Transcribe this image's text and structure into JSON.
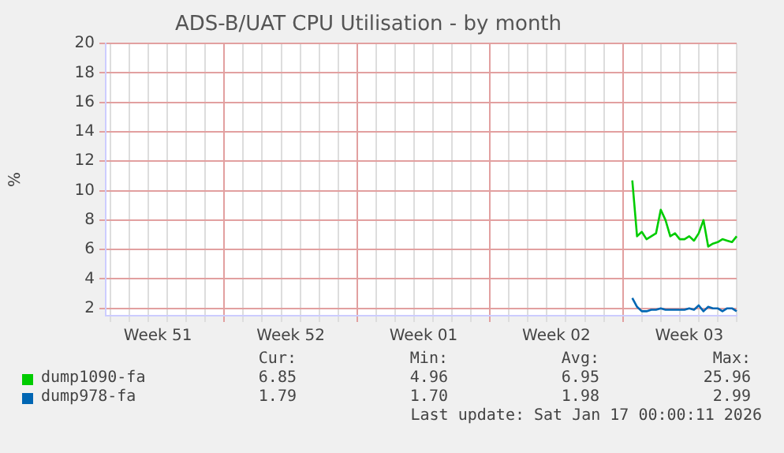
{
  "chart_data": {
    "type": "line",
    "title": "ADS-B/UAT CPU Utilisation - by month",
    "ylabel": "%",
    "categories": [
      null,
      null,
      null,
      null,
      null,
      null,
      null,
      null,
      null,
      null,
      null,
      "Week 51",
      null,
      null,
      null,
      null,
      null,
      null,
      null,
      null,
      null,
      null,
      null,
      null,
      null,
      null,
      null,
      null,
      null,
      null,
      null,
      null,
      null,
      null,
      null,
      null,
      null,
      null,
      null,
      "Week 52",
      null,
      null,
      null,
      null,
      null,
      null,
      null,
      null,
      null,
      null,
      null,
      null,
      null,
      null,
      null,
      null,
      null,
      null,
      null,
      null,
      null,
      null,
      null,
      null,
      null,
      null,
      null,
      "Week 01",
      null,
      null,
      null,
      null,
      null,
      null,
      null,
      null,
      null,
      null,
      null,
      null,
      null,
      null,
      null,
      null,
      null,
      null,
      null,
      null,
      null,
      null,
      null,
      null,
      null,
      null,
      null,
      "Week 02",
      null,
      null,
      null,
      null,
      null,
      null,
      null,
      null,
      null,
      null,
      null,
      null,
      null,
      null,
      null,
      null,
      null,
      null,
      null,
      null,
      null,
      null,
      null,
      null,
      null,
      null,
      null,
      "Week 03",
      null,
      null,
      null,
      null,
      null,
      null,
      null,
      null,
      null,
      null
    ],
    "ylim": [
      1.5,
      20
    ],
    "yticks": [
      2,
      4,
      6,
      8,
      10,
      12,
      14,
      16,
      18,
      20
    ],
    "grid": true,
    "legend": "bottom",
    "marker": "none",
    "line_style": "solid",
    "series": [
      {
        "name": "dump1090-fa",
        "color": "#00cc00",
        "values": [
          null,
          null,
          null,
          null,
          null,
          null,
          null,
          null,
          null,
          null,
          null,
          null,
          null,
          null,
          null,
          null,
          null,
          null,
          null,
          null,
          null,
          null,
          null,
          null,
          null,
          null,
          null,
          null,
          null,
          null,
          null,
          null,
          null,
          null,
          null,
          null,
          null,
          null,
          null,
          null,
          null,
          null,
          null,
          null,
          null,
          null,
          null,
          null,
          null,
          null,
          null,
          null,
          null,
          null,
          null,
          null,
          null,
          null,
          null,
          null,
          null,
          null,
          null,
          null,
          null,
          null,
          null,
          null,
          null,
          null,
          null,
          null,
          null,
          null,
          null,
          null,
          null,
          null,
          null,
          null,
          null,
          null,
          null,
          null,
          null,
          null,
          null,
          null,
          null,
          null,
          null,
          null,
          null,
          null,
          null,
          null,
          null,
          null,
          null,
          null,
          null,
          null,
          null,
          null,
          null,
          null,
          null,
          null,
          null,
          null,
          null,
          10.7,
          6.9,
          7.2,
          6.7,
          6.9,
          7.1,
          8.7,
          8.0,
          6.9,
          7.1,
          6.7,
          6.7,
          6.9,
          6.6,
          7.1,
          8.0,
          6.2,
          6.4,
          6.5,
          6.7,
          6.6,
          6.5,
          6.9
        ]
      },
      {
        "name": "dump978-fa",
        "color": "#0066b3",
        "values": [
          null,
          null,
          null,
          null,
          null,
          null,
          null,
          null,
          null,
          null,
          null,
          null,
          null,
          null,
          null,
          null,
          null,
          null,
          null,
          null,
          null,
          null,
          null,
          null,
          null,
          null,
          null,
          null,
          null,
          null,
          null,
          null,
          null,
          null,
          null,
          null,
          null,
          null,
          null,
          null,
          null,
          null,
          null,
          null,
          null,
          null,
          null,
          null,
          null,
          null,
          null,
          null,
          null,
          null,
          null,
          null,
          null,
          null,
          null,
          null,
          null,
          null,
          null,
          null,
          null,
          null,
          null,
          null,
          null,
          null,
          null,
          null,
          null,
          null,
          null,
          null,
          null,
          null,
          null,
          null,
          null,
          null,
          null,
          null,
          null,
          null,
          null,
          null,
          null,
          null,
          null,
          null,
          null,
          null,
          null,
          null,
          null,
          null,
          null,
          null,
          null,
          null,
          null,
          null,
          null,
          null,
          null,
          null,
          null,
          null,
          null,
          2.7,
          2.1,
          1.8,
          1.8,
          1.9,
          1.9,
          2.0,
          1.9,
          1.9,
          1.9,
          1.9,
          1.9,
          2.0,
          1.9,
          2.2,
          1.8,
          2.1,
          2.0,
          2.0,
          1.8,
          2.0,
          2.0,
          1.8
        ]
      }
    ],
    "annotations": [
      "Cur:",
      "Min:",
      "Avg:",
      "Max:",
      "6.85",
      "4.96",
      "6.95",
      "25.96",
      "1.79",
      "1.70",
      "1.98",
      "2.99",
      "Last update: Sat Jan 17 00:00:11 2026"
    ]
  }
}
